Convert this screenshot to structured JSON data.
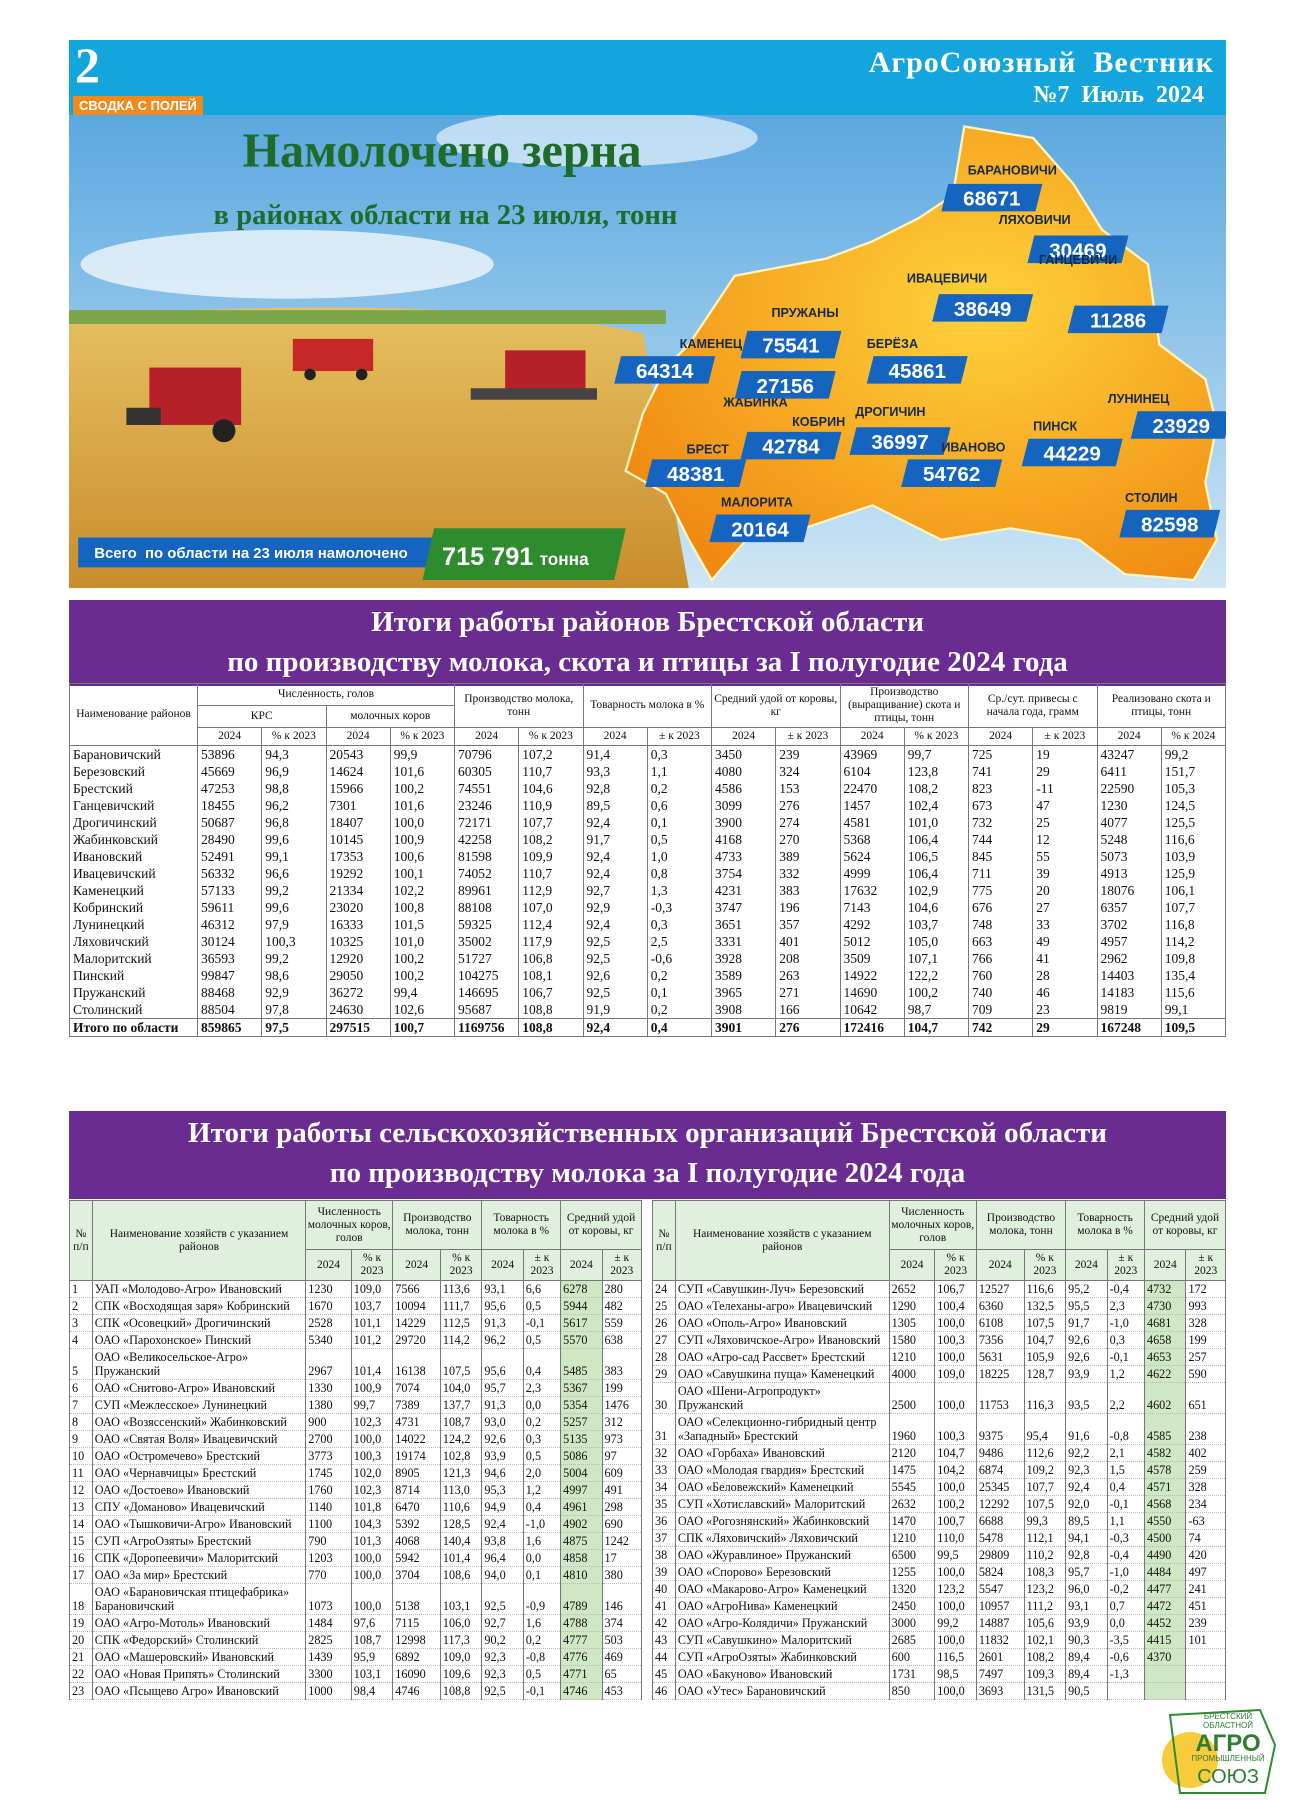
{
  "header": {
    "page_number": "2",
    "section": "СВОДКА С ПОЛЕЙ",
    "title": "АгроСоюзный  Вестник",
    "issue": "№7  Июль  2024"
  },
  "banner": {
    "title": "Намолочено зерна",
    "subtitle": "в районах области на 23 июля, тонн",
    "districts": [
      {
        "name": "БАРАНОВИЧИ",
        "value": "68671"
      },
      {
        "name": "ЛЯХОВИЧИ",
        "value": "30469"
      },
      {
        "name": "ИВАЦЕВИЧИ",
        "value": "38649"
      },
      {
        "name": "ГАНЦЕВИЧИ",
        "value": "11286"
      },
      {
        "name": "ПРУЖАНЫ",
        "value": "75541"
      },
      {
        "name": "КАМЕНЕЦ",
        "value": "64314"
      },
      {
        "name": "БЕРЁЗА",
        "value": "45861"
      },
      {
        "name": "ЖАБИНКА",
        "value": "27156"
      },
      {
        "name": "КОБРИН",
        "value": "42784"
      },
      {
        "name": "ДРОГИЧИН",
        "value": "36997"
      },
      {
        "name": "ЛУНИНЕЦ",
        "value": "23929"
      },
      {
        "name": "БРЕСТ",
        "value": "48381"
      },
      {
        "name": "ИВАНОВО",
        "value": "54762"
      },
      {
        "name": "ПИНСК",
        "value": "44229"
      },
      {
        "name": "МАЛОРИТА",
        "value": "20164"
      },
      {
        "name": "СТОЛИН",
        "value": "82598"
      }
    ],
    "total_label": "Всего  по области на 23 июля намолочено",
    "total_value": "715 791",
    "total_unit": "тонна"
  },
  "table1": {
    "title_line1": "Итоги работы районов Брестской области",
    "title_line2": "по производству молока, скота и птицы за I полугодие 2024 года",
    "name_header": "Наименование районов",
    "group_headers": [
      "Численность, голов",
      "Производство молока, тонн",
      "Товарность молока в %",
      "Средний удой от коровы, кг",
      "Производство (выращивание) скота и птицы, тонн",
      "Ср./сут. привесы с начала года, грамм",
      "Реализовано скота и птицы, тонн"
    ],
    "sub_groups": [
      "КРС",
      "молочных коров"
    ],
    "subheaders": [
      "2024",
      "% к 2023",
      "2024",
      "% к 2023",
      "2024",
      "% к 2023",
      "2024",
      "± к 2023",
      "2024",
      "± к 2023",
      "2024",
      "% к 2023",
      "2024",
      "± к 2023",
      "2024",
      "% к 2024"
    ],
    "rows": [
      [
        "Барановичский",
        "53896",
        "94,3",
        "20543",
        "99,9",
        "70796",
        "107,2",
        "91,4",
        "0,3",
        "3450",
        "239",
        "43969",
        "99,7",
        "725",
        "19",
        "43247",
        "99,2"
      ],
      [
        "Березовский",
        "45669",
        "96,9",
        "14624",
        "101,6",
        "60305",
        "110,7",
        "93,3",
        "1,1",
        "4080",
        "324",
        "6104",
        "123,8",
        "741",
        "29",
        "6411",
        "151,7"
      ],
      [
        "Брестский",
        "47253",
        "98,8",
        "15966",
        "100,2",
        "74551",
        "104,6",
        "92,8",
        "0,2",
        "4586",
        "153",
        "22470",
        "108,2",
        "823",
        "-11",
        "22590",
        "105,3"
      ],
      [
        "Ганцевичский",
        "18455",
        "96,2",
        "7301",
        "101,6",
        "23246",
        "110,9",
        "89,5",
        "0,6",
        "3099",
        "276",
        "1457",
        "102,4",
        "673",
        "47",
        "1230",
        "124,5"
      ],
      [
        "Дрогичинский",
        "50687",
        "96,8",
        "18407",
        "100,0",
        "72171",
        "107,7",
        "92,4",
        "0,1",
        "3900",
        "274",
        "4581",
        "101,0",
        "732",
        "25",
        "4077",
        "125,5"
      ],
      [
        "Жабинковский",
        "28490",
        "99,6",
        "10145",
        "100,9",
        "42258",
        "108,2",
        "91,7",
        "0,5",
        "4168",
        "270",
        "5368",
        "106,4",
        "744",
        "12",
        "5248",
        "116,6"
      ],
      [
        "Ивановский",
        "52491",
        "99,1",
        "17353",
        "100,6",
        "81598",
        "109,9",
        "92,4",
        "1,0",
        "4733",
        "389",
        "5624",
        "106,5",
        "845",
        "55",
        "5073",
        "103,9"
      ],
      [
        "Ивацевичский",
        "56332",
        "96,6",
        "19292",
        "100,1",
        "74052",
        "110,7",
        "92,4",
        "0,8",
        "3754",
        "332",
        "4999",
        "106,4",
        "711",
        "39",
        "4913",
        "125,9"
      ],
      [
        "Каменецкий",
        "57133",
        "99,2",
        "21334",
        "102,2",
        "89961",
        "112,9",
        "92,7",
        "1,3",
        "4231",
        "383",
        "17632",
        "102,9",
        "775",
        "20",
        "18076",
        "106,1"
      ],
      [
        "Кобринский",
        "59611",
        "99,6",
        "23020",
        "100,8",
        "88108",
        "107,0",
        "92,9",
        "-0,3",
        "3747",
        "196",
        "7143",
        "104,6",
        "676",
        "27",
        "6357",
        "107,7"
      ],
      [
        "Лунинецкий",
        "46312",
        "97,9",
        "16333",
        "101,5",
        "59325",
        "112,4",
        "92,4",
        "0,3",
        "3651",
        "357",
        "4292",
        "103,7",
        "748",
        "33",
        "3702",
        "116,8"
      ],
      [
        "Ляховичский",
        "30124",
        "100,3",
        "10325",
        "101,0",
        "35002",
        "117,9",
        "92,5",
        "2,5",
        "3331",
        "401",
        "5012",
        "105,0",
        "663",
        "49",
        "4957",
        "114,2"
      ],
      [
        "Малоритский",
        "36593",
        "99,2",
        "12920",
        "100,2",
        "51727",
        "106,8",
        "92,5",
        "-0,6",
        "3928",
        "208",
        "3509",
        "107,1",
        "766",
        "41",
        "2962",
        "109,8"
      ],
      [
        "Пинский",
        "99847",
        "98,6",
        "29050",
        "100,2",
        "104275",
        "108,1",
        "92,6",
        "0,2",
        "3589",
        "263",
        "14922",
        "122,2",
        "760",
        "28",
        "14403",
        "135,4"
      ],
      [
        "Пружанский",
        "88468",
        "92,9",
        "36272",
        "99,4",
        "146695",
        "106,7",
        "92,5",
        "0,1",
        "3965",
        "271",
        "14690",
        "100,2",
        "740",
        "46",
        "14183",
        "115,6"
      ],
      [
        "Столинский",
        "88504",
        "97,8",
        "24630",
        "102,6",
        "95687",
        "108,8",
        "91,9",
        "0,2",
        "3908",
        "166",
        "10642",
        "98,7",
        "709",
        "23",
        "9819",
        "99,1"
      ],
      [
        "Итого по области",
        "859865",
        "97,5",
        "297515",
        "100,7",
        "1169756",
        "108,8",
        "92,4",
        "0,4",
        "3901",
        "276",
        "172416",
        "104,7",
        "742",
        "29",
        "167248",
        "109,5"
      ]
    ]
  },
  "table2": {
    "title_line1": "Итоги работы сельскохозяйственных организаций Брестской области",
    "title_line2": "по производству молока за I полугодие 2024 года",
    "num_header": "№ п/п",
    "name_header": "Наименование хозяйств с указанием районов",
    "group_headers": [
      "Численность молочных коров, голов",
      "Производство молока, тонн",
      "Товарность молока в %",
      "Средний удой от коровы, кг"
    ],
    "subheaders": [
      "2024",
      "% к 2023",
      "2024",
      "% к 2023",
      "2024",
      "± к 2023",
      "2024",
      "± к 2023"
    ],
    "left_rows": [
      [
        "1",
        "УАП «Молодово-Агро» Ивановский",
        "1230",
        "109,0",
        "7566",
        "113,6",
        "93,1",
        "6,6",
        "6278",
        "280"
      ],
      [
        "2",
        "СПК «Восходящая заря» Кобринский",
        "1670",
        "103,7",
        "10094",
        "111,7",
        "95,6",
        "0,5",
        "5944",
        "482"
      ],
      [
        "3",
        "СПК «Осовецкий» Дрогичинский",
        "2528",
        "101,1",
        "14229",
        "112,5",
        "91,3",
        "-0,1",
        "5617",
        "559"
      ],
      [
        "4",
        "ОАО «Парохонское» Пинский",
        "5340",
        "101,2",
        "29720",
        "114,2",
        "96,2",
        "0,5",
        "5570",
        "638"
      ],
      [
        "5",
        "ОАО «Великосельское-Агро» Пружанский",
        "2967",
        "101,4",
        "16138",
        "107,5",
        "95,6",
        "0,4",
        "5485",
        "383"
      ],
      [
        "6",
        "ОАО «Снитово-Агро» Ивановский",
        "1330",
        "100,9",
        "7074",
        "104,0",
        "95,7",
        "2,3",
        "5367",
        "199"
      ],
      [
        "7",
        "СУП «Межлесское» Лунинецкий",
        "1380",
        "99,7",
        "7389",
        "137,7",
        "91,3",
        "0,0",
        "5354",
        "1476"
      ],
      [
        "8",
        "ОАО «Возяссенский» Жабинковский",
        "900",
        "102,3",
        "4731",
        "108,7",
        "93,0",
        "0,2",
        "5257",
        "312"
      ],
      [
        "9",
        "ОАО «Святая Воля» Ивацевичский",
        "2700",
        "100,0",
        "14022",
        "124,2",
        "92,6",
        "0,3",
        "5135",
        "973"
      ],
      [
        "10",
        "ОАО «Остромечево» Брестский",
        "3773",
        "100,3",
        "19174",
        "102,8",
        "93,9",
        "0,5",
        "5086",
        "97"
      ],
      [
        "11",
        "ОАО «Чернавчицы» Брестский",
        "1745",
        "102,0",
        "8905",
        "121,3",
        "94,6",
        "2,0",
        "5004",
        "609"
      ],
      [
        "12",
        "ОАО «Достоево» Ивановский",
        "1760",
        "102,3",
        "8714",
        "113,0",
        "95,3",
        "1,2",
        "4997",
        "491"
      ],
      [
        "13",
        "СПУ «Доманово» Ивацевичский",
        "1140",
        "101,8",
        "6470",
        "110,6",
        "94,9",
        "0,4",
        "4961",
        "298"
      ],
      [
        "14",
        "ОАО «Тышковичи-Агро» Ивановский",
        "1100",
        "104,3",
        "5392",
        "128,5",
        "92,4",
        "-1,0",
        "4902",
        "690"
      ],
      [
        "15",
        "СУП «АгроОзяты» Брестский",
        "790",
        "101,3",
        "4068",
        "140,4",
        "93,8",
        "1,6",
        "4875",
        "1242"
      ],
      [
        "16",
        "СПК «Доропеевичи» Малоритский",
        "1203",
        "100,0",
        "5942",
        "101,4",
        "96,4",
        "0,0",
        "4858",
        "17"
      ],
      [
        "17",
        "ОАО «За мир» Брестский",
        "770",
        "100,0",
        "3704",
        "108,6",
        "94,0",
        "0,1",
        "4810",
        "380"
      ],
      [
        "18",
        "ОАО «Барановичская птицефабрика» Барановичский",
        "1073",
        "100,0",
        "5138",
        "103,1",
        "92,5",
        "-0,9",
        "4789",
        "146"
      ],
      [
        "19",
        "ОАО «Агро-Мотоль» Ивановский",
        "1484",
        "97,6",
        "7115",
        "106,0",
        "92,7",
        "1,6",
        "4788",
        "374"
      ],
      [
        "20",
        "СПК «Федорский» Столинский",
        "2825",
        "108,7",
        "12998",
        "117,3",
        "90,2",
        "0,2",
        "4777",
        "503"
      ],
      [
        "21",
        "ОАО «Машеровский» Ивановский",
        "1439",
        "95,9",
        "6892",
        "109,0",
        "92,3",
        "-0,8",
        "4776",
        "469"
      ],
      [
        "22",
        "ОАО «Новая Припять» Столинский",
        "3300",
        "103,1",
        "16090",
        "109,6",
        "92,3",
        "0,5",
        "4771",
        "65"
      ],
      [
        "23",
        "ОАО «Псыщево Агро» Ивановский",
        "1000",
        "98,4",
        "4746",
        "108,8",
        "92,5",
        "-0,1",
        "4746",
        "453"
      ]
    ],
    "right_rows": [
      [
        "24",
        "СУП «Савушкин-Луч» Березовский",
        "2652",
        "106,7",
        "12527",
        "116,6",
        "95,2",
        "-0,4",
        "4732",
        "172"
      ],
      [
        "25",
        "ОАО «Телеханы-агро» Ивацевичский",
        "1290",
        "100,4",
        "6360",
        "132,5",
        "95,5",
        "2,3",
        "4730",
        "993"
      ],
      [
        "26",
        "ОАО «Ополь-Агро» Ивановский",
        "1305",
        "100,0",
        "6108",
        "107,5",
        "91,7",
        "-1,0",
        "4681",
        "328"
      ],
      [
        "27",
        "СУП «Ляховичское-Агро» Ивановский",
        "1580",
        "100,3",
        "7356",
        "104,7",
        "92,6",
        "0,3",
        "4658",
        "199"
      ],
      [
        "28",
        "ОАО «Агро-сад Рассвет» Брестский",
        "1210",
        "100,0",
        "5631",
        "105,9",
        "92,6",
        "-0,1",
        "4653",
        "257"
      ],
      [
        "29",
        "ОАО «Савушкина пуща» Каменецкий",
        "4000",
        "109,0",
        "18225",
        "128,7",
        "93,9",
        "1,2",
        "4622",
        "590"
      ],
      [
        "30",
        "ОАО «Шени-Агропродукт» Пружанский",
        "2500",
        "100,0",
        "11753",
        "116,3",
        "93,5",
        "2,2",
        "4602",
        "651"
      ],
      [
        "31",
        "ОАО «Селекционно-гибридный центр «Западный» Брестский",
        "1960",
        "100,3",
        "9375",
        "95,4",
        "91,6",
        "-0,8",
        "4585",
        "238"
      ],
      [
        "32",
        "ОАО «Горбаха» Ивановский",
        "2120",
        "104,7",
        "9486",
        "112,6",
        "92,2",
        "2,1",
        "4582",
        "402"
      ],
      [
        "33",
        "ОАО «Молодая гвардия» Брестский",
        "1475",
        "104,2",
        "6874",
        "109,2",
        "92,3",
        "1,5",
        "4578",
        "259"
      ],
      [
        "34",
        "ОАО «Беловежский» Каменецкий",
        "5545",
        "100,0",
        "25345",
        "107,7",
        "92,4",
        "0,4",
        "4571",
        "328"
      ],
      [
        "35",
        "СУП «Хотиславский» Малоритский",
        "2632",
        "100,2",
        "12292",
        "107,5",
        "92,0",
        "-0,1",
        "4568",
        "234"
      ],
      [
        "36",
        "ОАО «Рогознянский» Жабинковский",
        "1470",
        "100,7",
        "6688",
        "99,3",
        "89,5",
        "1,1",
        "4550",
        "-63"
      ],
      [
        "37",
        "СПК «Ляховичский» Ляховичский",
        "1210",
        "110,0",
        "5478",
        "112,1",
        "94,1",
        "-0,3",
        "4500",
        "74"
      ],
      [
        "38",
        "ОАО «Журавлиное» Пружанский",
        "6500",
        "99,5",
        "29809",
        "110,2",
        "92,8",
        "-0,4",
        "4490",
        "420"
      ],
      [
        "39",
        "ОАО «Спорово» Березовский",
        "1255",
        "100,0",
        "5824",
        "108,3",
        "95,7",
        "-1,0",
        "4484",
        "497"
      ],
      [
        "40",
        "ОАО «Макарово-Агро» Каменецкий",
        "1320",
        "123,2",
        "5547",
        "123,2",
        "96,0",
        "-0,2",
        "4477",
        "241"
      ],
      [
        "41",
        "ОАО «АгроНива» Каменецкий",
        "2450",
        "100,0",
        "10957",
        "111,2",
        "93,1",
        "0,7",
        "4472",
        "451"
      ],
      [
        "42",
        "ОАО «Агро-Колядичи» Пружанский",
        "3000",
        "99,2",
        "14887",
        "105,6",
        "93,9",
        "0,0",
        "4452",
        "239"
      ],
      [
        "43",
        "СУП «Савушкино» Малоритский",
        "2685",
        "100,0",
        "11832",
        "102,1",
        "90,3",
        "-3,5",
        "4415",
        "101"
      ],
      [
        "44",
        "СУП «АгроОзяты» Жабинковский",
        "600",
        "116,5",
        "2601",
        "108,2",
        "89,4",
        "-0,6",
        "4370",
        null
      ],
      [
        "45",
        "ОАО «Бакуново» Ивановский",
        "1731",
        "98,5",
        "7497",
        "109,3",
        "89,4",
        "-1,3",
        null,
        null
      ],
      [
        "46",
        "ОАО «Утес» Барановичский",
        "850",
        "100,0",
        "3693",
        "131,5",
        "90,5",
        null,
        null,
        null
      ]
    ]
  },
  "logo": {
    "line1": "БРЕСТСКИЙ",
    "line2": "ОБЛАСТНОЙ",
    "line3": "АГРО",
    "line4": "ПРОМЫШЛЕННЫЙ",
    "line5": "СОЮЗ"
  }
}
